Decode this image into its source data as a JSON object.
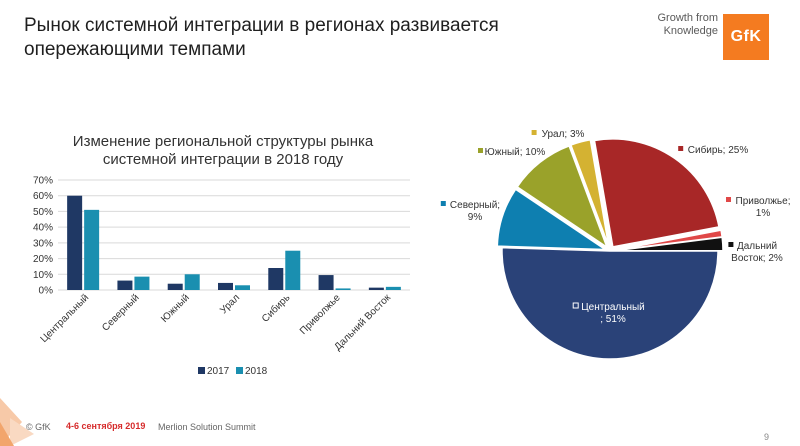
{
  "header": {
    "title": "Рынок системной интеграции в регионах развивается опережающими темпами",
    "brand_tagline": "Growth from Knowledge",
    "logo_text": "GfK"
  },
  "footer": {
    "copyright": "© GfK",
    "date": "4-6 сентября 2019",
    "event": "Merlion Solution Summit",
    "page_number": "9"
  },
  "colors": {
    "series_2017": "#1f3864",
    "series_2018": "#1a8fb0",
    "accent": "#f47b20",
    "footer_date": "#d62b2b"
  },
  "chart_data": [
    {
      "type": "bar",
      "title": "Изменение региональной структуры рынка системной интеграции в 2018 году",
      "categories": [
        "Центральный",
        "Северный",
        "Южный",
        "Урал",
        "Сибирь",
        "Приволжье",
        "Дальний Восток"
      ],
      "series": [
        {
          "name": "2017",
          "color": "#1f3864",
          "values": [
            60,
            6,
            4,
            4.5,
            14,
            9.5,
            1.5
          ]
        },
        {
          "name": "2018",
          "color": "#1a8fb0",
          "values": [
            51,
            8.5,
            10,
            3,
            25,
            1,
            2
          ]
        }
      ],
      "ylim": [
        0,
        70
      ],
      "yticks": [
        "0%",
        "10%",
        "20%",
        "30%",
        "40%",
        "50%",
        "60%",
        "70%"
      ],
      "grid": true,
      "legend": "bottom"
    },
    {
      "type": "pie",
      "slices": [
        {
          "label": "Центральный; 51%",
          "name": "Центральный",
          "value": 51,
          "color": "#2a4278"
        },
        {
          "label": "Северный; 9%",
          "name": "Северный",
          "value": 9,
          "color": "#0e7fb0"
        },
        {
          "label": "Южный; 10%",
          "name": "Южный",
          "value": 10,
          "color": "#9aa22a"
        },
        {
          "label": "Урал; 3%",
          "name": "Урал",
          "value": 3,
          "color": "#d4b232"
        },
        {
          "label": "Сибирь; 25%",
          "name": "Сибирь",
          "value": 25,
          "color": "#a82727"
        },
        {
          "label": "Приволжье; 1%",
          "name": "Приволжье",
          "value": 1,
          "color": "#e04848"
        },
        {
          "label": "Дальний Восток; 2%",
          "name": "Дальний Восток",
          "value": 2,
          "color": "#111111"
        }
      ]
    }
  ]
}
